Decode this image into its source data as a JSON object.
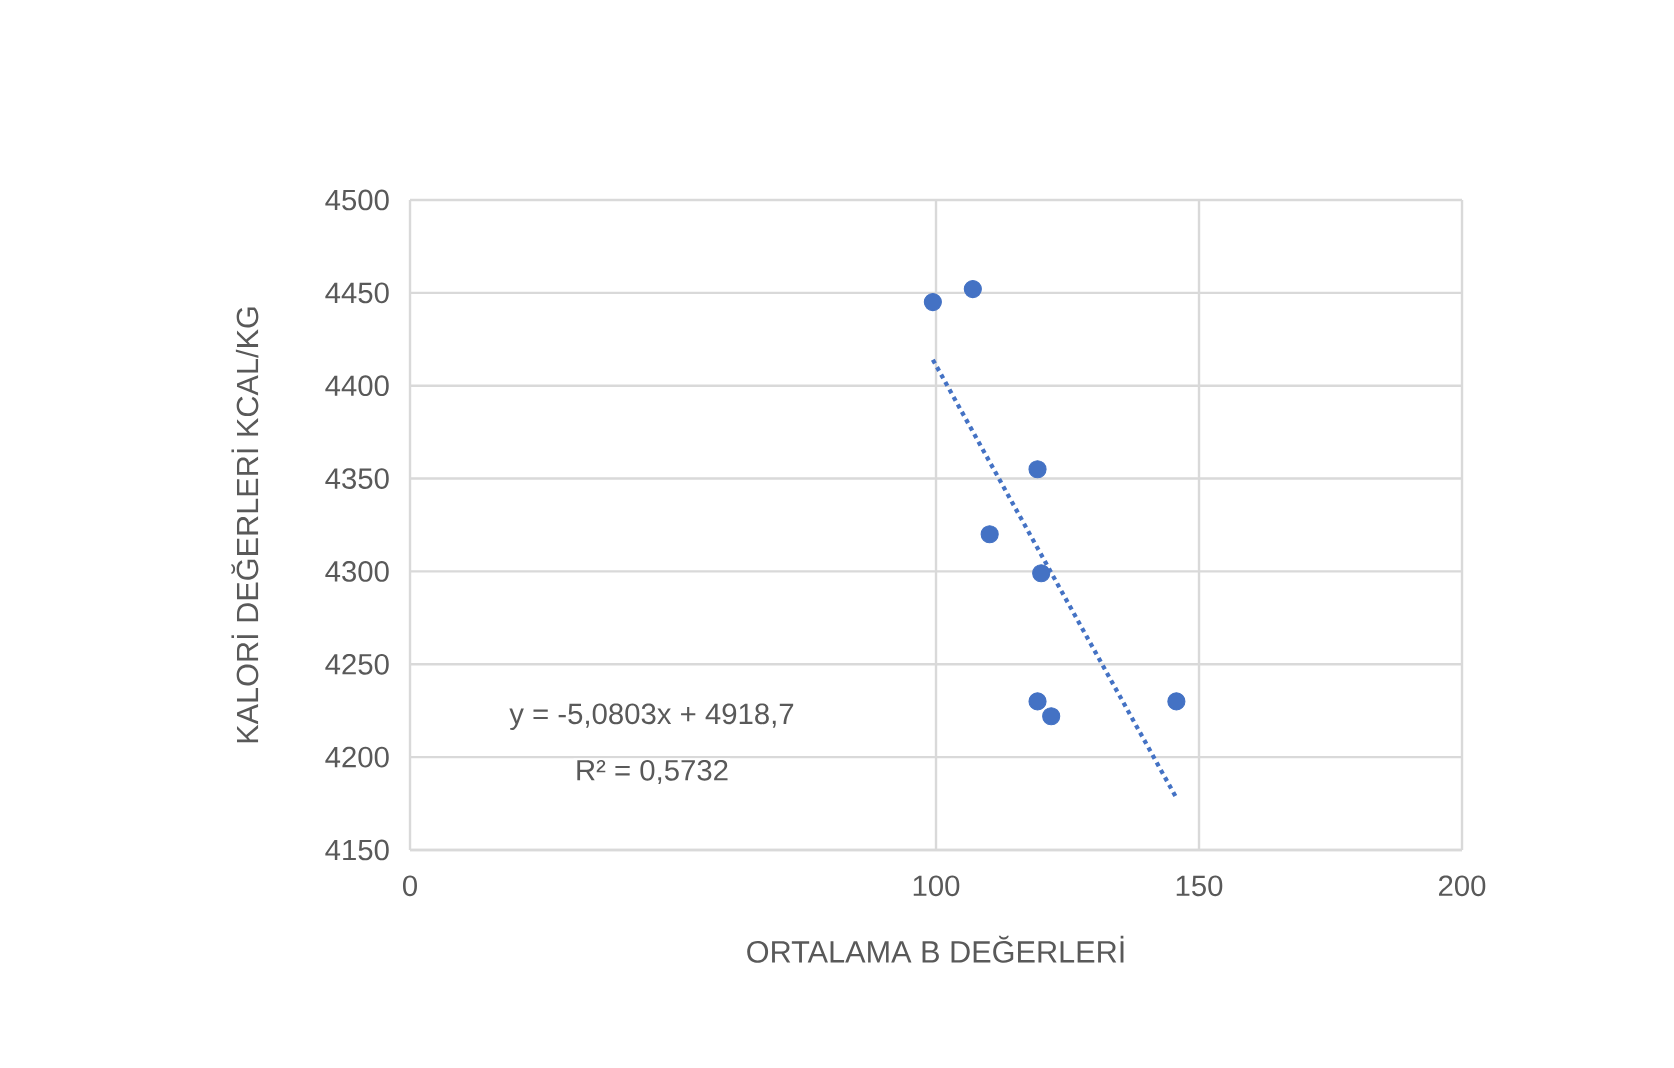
{
  "chart_data": {
    "type": "scatter",
    "xlabel": "ORTALAMA  B DEĞERLERİ",
    "ylabel": "KALORİ DEĞERLERİ KCAL/KG",
    "xlim": [
      0,
      200
    ],
    "xticks": [
      0,
      100,
      150,
      200
    ],
    "ylim": [
      4150,
      4500
    ],
    "yticks": [
      4150,
      4200,
      4250,
      4300,
      4350,
      4400,
      4450,
      4500
    ],
    "grid": true,
    "series": [
      {
        "color": "#4472c4",
        "marker": "circle",
        "x": [
          99.4,
          107,
          119.3,
          110.2,
          120,
          119.3,
          121.9,
          145.7
        ],
        "values": [
          4445,
          4452,
          4355,
          4320,
          4299,
          4230,
          4222,
          4230
        ]
      },
      {
        "type": "line",
        "color": "#4472c4",
        "line_style": "dotted",
        "marker": "none",
        "x": [
          99.4,
          145.7
        ],
        "values": [
          4414,
          4178
        ]
      }
    ],
    "annotations": [
      "y = -5,0803x + 4918,7",
      "R² = 0,5732"
    ]
  }
}
